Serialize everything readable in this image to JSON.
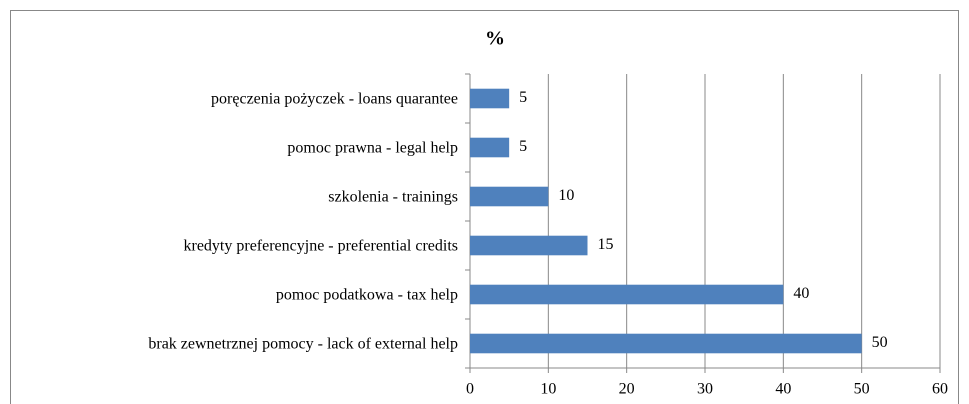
{
  "chart_data": {
    "type": "bar",
    "orientation": "horizontal",
    "title": "%",
    "categories": [
      "poręczenia pożyczek - loans quarantee",
      "pomoc prawna - legal help",
      "szkolenia - trainings",
      "kredyty preferencyjne - preferential credits",
      "pomoc podatkowa - tax help",
      "brak zewnetrznej pomocy - lack of external help"
    ],
    "values": [
      5,
      5,
      10,
      15,
      40,
      50
    ],
    "color": "#4f81bd",
    "xlim": [
      0,
      60
    ],
    "xticks": [
      0,
      10,
      20,
      30,
      40,
      50,
      60
    ],
    "grid": true
  }
}
